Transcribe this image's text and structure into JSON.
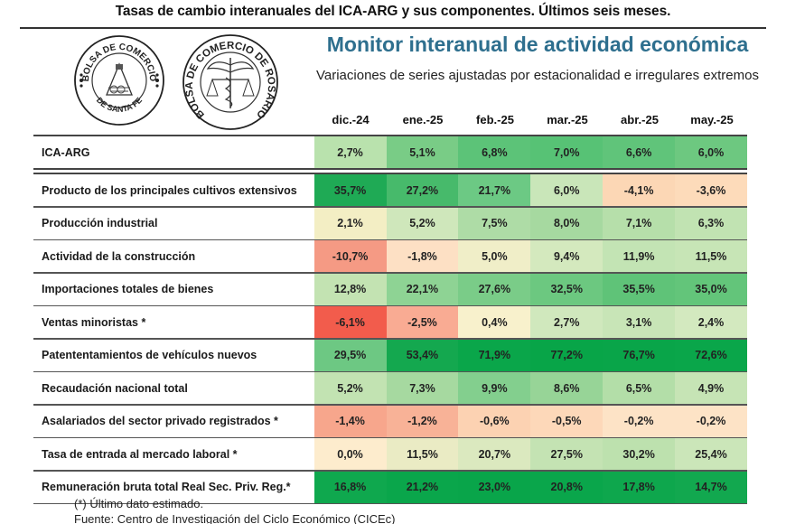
{
  "header": {
    "title": "Tasas de cambio interanuales del ICA-ARG y sus componentes. Últimos seis meses.",
    "monitor_title": "Monitor interanual de actividad económica",
    "monitor_subtitle": "Variaciones de series ajustadas por estacionalidad e irregulares extremos"
  },
  "logos": {
    "santafe": {
      "top_text": "BOLSA DE COMERCIO",
      "bottom_text": "DE SANTA FE"
    },
    "rosario": {
      "ring_text": "BOLSA DE COMERCIO DE ROSARIO"
    }
  },
  "columns": [
    "dic.-24",
    "ene.-25",
    "feb.-25",
    "mar.-25",
    "abr.-25",
    "may.-25"
  ],
  "rows": [
    {
      "label": "ICA-ARG",
      "values": [
        "2,7%",
        "5,1%",
        "6,8%",
        "7,0%",
        "6,6%",
        "6,0%"
      ],
      "colors": [
        "#b9e2ad",
        "#79cc86",
        "#5cc378",
        "#57c275",
        "#60c47a",
        "#6dc880"
      ]
    },
    {
      "label": "Producto de los principales cultivos extensivos",
      "values": [
        "35,7%",
        "27,2%",
        "21,7%",
        "6,0%",
        "-4,1%",
        "-3,6%"
      ],
      "colors": [
        "#1faa55",
        "#47ba6b",
        "#6cc984",
        "#c9e6b9",
        "#fcd7b5",
        "#fddbba"
      ]
    },
    {
      "label": "Producción industrial",
      "values": [
        "2,1%",
        "5,2%",
        "7,5%",
        "8,0%",
        "7,1%",
        "6,3%"
      ],
      "colors": [
        "#f3eec4",
        "#cfe7bb",
        "#aedca6",
        "#a6d9a0",
        "#b6dfaa",
        "#c1e3b2"
      ]
    },
    {
      "label": "Actividad de la construcción",
      "values": [
        "-10,7%",
        "-1,8%",
        "5,0%",
        "9,4%",
        "11,9%",
        "11,5%"
      ],
      "colors": [
        "#f59a84",
        "#fde0c4",
        "#f0eec8",
        "#d4e9be",
        "#c3e4b4",
        "#c7e5b6"
      ]
    },
    {
      "label": "Importaciones totales de bienes",
      "values": [
        "12,8%",
        "22,1%",
        "27,6%",
        "32,5%",
        "35,5%",
        "35,0%"
      ],
      "colors": [
        "#c3e3b2",
        "#8ed394",
        "#7acc88",
        "#6cc880",
        "#5fc378",
        "#63c57a"
      ]
    },
    {
      "label": "Ventas minoristas *",
      "values": [
        "-6,1%",
        "-2,5%",
        "0,4%",
        "2,7%",
        "3,1%",
        "2,4%"
      ],
      "colors": [
        "#f25c4c",
        "#f9ab93",
        "#f8f1cc",
        "#d0e8bd",
        "#c8e5b7",
        "#d3e9bf"
      ]
    },
    {
      "label": "Patententamientos de vehículos nuevos",
      "values": [
        "29,5%",
        "53,4%",
        "71,9%",
        "77,2%",
        "76,7%",
        "72,6%"
      ],
      "colors": [
        "#6dc883",
        "#14a84f",
        "#0aa64a",
        "#08a548",
        "#09a549",
        "#0aa64a"
      ]
    },
    {
      "label": "Recaudación nacional total",
      "values": [
        "5,2%",
        "7,3%",
        "9,9%",
        "8,6%",
        "6,5%",
        "4,9%"
      ],
      "colors": [
        "#c2e3b2",
        "#a6d9a0",
        "#83cf8e",
        "#97d497",
        "#b3dea8",
        "#c6e4b5"
      ]
    },
    {
      "label": "Asalariados del sector privado registrados *",
      "values": [
        "-1,4%",
        "-1,2%",
        "-0,6%",
        "-0,5%",
        "-0,2%",
        "-0,2%"
      ],
      "colors": [
        "#f7a68c",
        "#f8b297",
        "#fcd2b2",
        "#fdd8b9",
        "#fde3c6",
        "#fde3c6"
      ]
    },
    {
      "label": "Tasa de entrada al mercado laboral *",
      "values": [
        "0,0%",
        "11,5%",
        "20,7%",
        "27,5%",
        "30,2%",
        "25,4%"
      ],
      "colors": [
        "#fdeccd",
        "#eaebc4",
        "#dbe9bf",
        "#c4e3b3",
        "#bde1ae",
        "#cbe6b9"
      ]
    },
    {
      "label": "Remuneración bruta total Real Sec. Priv. Reg.*",
      "values": [
        "16,8%",
        "21,2%",
        "23,0%",
        "20,8%",
        "17,8%",
        "14,7%"
      ],
      "colors": [
        "#0fa84e",
        "#0aa64b",
        "#09a54a",
        "#0aa64b",
        "#0ea74d",
        "#12a84f"
      ]
    }
  ],
  "footnotes": {
    "note": "(*) Último dato estimado.",
    "source": "Fuente: Centro de Investigación del Ciclo Económico (CICEc)"
  }
}
